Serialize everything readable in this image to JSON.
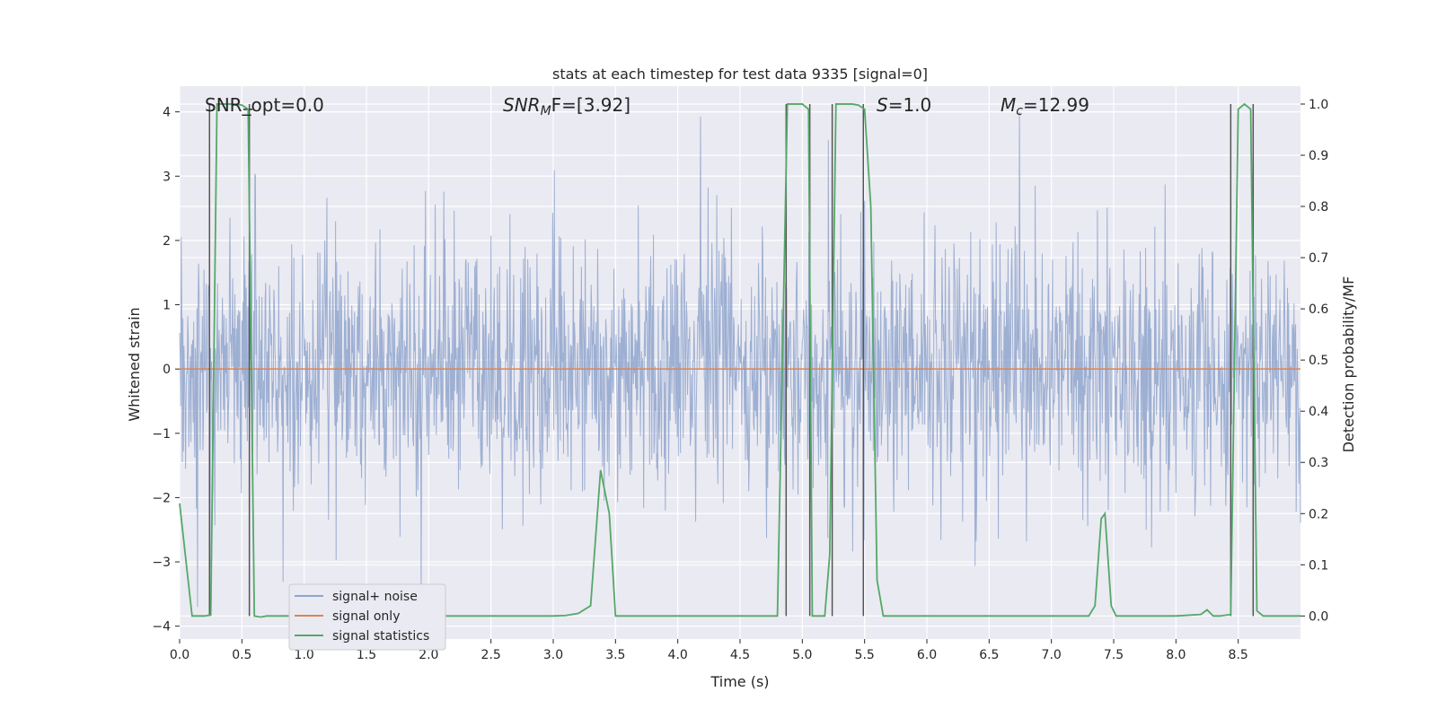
{
  "chart_data": {
    "type": "line",
    "title": "stats at each timestep for test data 9335 [signal=0]",
    "xlabel": "Time (s)",
    "ylabel_left": "Whitened strain",
    "ylabel_right": "Detection probability/MF",
    "xlim": [
      0.0,
      9.0
    ],
    "ylim_left": [
      -4.2,
      4.4
    ],
    "ylim_right": [
      -0.045,
      1.035
    ],
    "x_ticks": [
      0.0,
      0.5,
      1.0,
      1.5,
      2.0,
      2.5,
      3.0,
      3.5,
      4.0,
      4.5,
      5.0,
      5.5,
      6.0,
      6.5,
      7.0,
      7.5,
      8.0,
      8.5
    ],
    "x_tick_labels": [
      "0.0",
      "0.5",
      "1.0",
      "1.5",
      "2.0",
      "2.5",
      "3.0",
      "3.5",
      "4.0",
      "4.5",
      "5.0",
      "5.5",
      "6.0",
      "6.5",
      "7.0",
      "7.5",
      "8.0",
      "8.5"
    ],
    "y_left_ticks": [
      4,
      3,
      2,
      1,
      0,
      -1,
      -2,
      -3,
      -4
    ],
    "y_left_tick_labels": [
      "4",
      "3",
      "2",
      "1",
      "0",
      "−1",
      "−2",
      "−3",
      "−4"
    ],
    "y_right_ticks": [
      1.0,
      0.9,
      0.8,
      0.7,
      0.6,
      0.5,
      0.4,
      0.3,
      0.2,
      0.1,
      0.0
    ],
    "y_right_tick_labels": [
      "1.0",
      "0.9",
      "0.8",
      "0.7",
      "0.6",
      "0.5",
      "0.4",
      "0.3",
      "0.2",
      "0.1",
      "0.0"
    ],
    "annotations": {
      "snr_opt": "SNR_opt=0.0",
      "snr_mf_base": "SNR",
      "snr_mf_sub": "M",
      "snr_mf_rest": "F=[3.92]",
      "s_label": "S",
      "s_rest": "=1.0",
      "mc_base": "M",
      "mc_sub": "c",
      "mc_rest": "=12.99"
    },
    "series": [
      {
        "name": "signal+ noise",
        "color": "#8fa4cc",
        "description_values": "whitened noise, approx Gaussian, samples between -3.7 and 4.0",
        "sample_rate_hz": 230,
        "seed": 9335,
        "sigma": 1.0
      },
      {
        "name": "signal only",
        "color": "#dd8452",
        "x": [
          0.0,
          9.0
        ],
        "y": [
          0.0,
          0.0
        ]
      },
      {
        "name": "signal statistics",
        "color": "#55a868",
        "axis": "right",
        "x": [
          0.0,
          0.05,
          0.1,
          0.15,
          0.2,
          0.25,
          0.3,
          0.35,
          0.4,
          0.45,
          0.5,
          0.55,
          0.6,
          0.65,
          0.7,
          0.75,
          0.8,
          1.0,
          1.5,
          2.0,
          2.5,
          3.0,
          3.1,
          3.2,
          3.3,
          3.38,
          3.45,
          3.5,
          3.55,
          4.0,
          4.5,
          4.8,
          4.88,
          4.95,
          5.0,
          5.05,
          5.08,
          5.12,
          5.18,
          5.22,
          5.27,
          5.32,
          5.4,
          5.45,
          5.5,
          5.55,
          5.6,
          5.65,
          5.7,
          6.0,
          6.5,
          7.0,
          7.3,
          7.35,
          7.4,
          7.43,
          7.48,
          7.52,
          7.6,
          8.0,
          8.2,
          8.25,
          8.3,
          8.35,
          8.44,
          8.5,
          8.55,
          8.6,
          8.65,
          8.7,
          8.8,
          9.0
        ],
        "y": [
          0.22,
          0.11,
          0.0,
          0.0,
          0.0,
          0.002,
          1.0,
          1.0,
          1.0,
          1.0,
          0.998,
          0.99,
          0.0,
          -0.002,
          0.0,
          0.0,
          0.0,
          0.0,
          0.0,
          0.0,
          0.0,
          0.0,
          0.001,
          0.005,
          0.02,
          0.285,
          0.2,
          0.0,
          0.0,
          0.0,
          0.0,
          0.0,
          1.0,
          1.0,
          1.0,
          0.99,
          0.0,
          0.0,
          0.0,
          0.12,
          1.0,
          1.0,
          1.0,
          0.998,
          0.99,
          0.8,
          0.07,
          0.0,
          0.0,
          0.0,
          0.0,
          0.0,
          0.0,
          0.02,
          0.19,
          0.2,
          0.02,
          0.0,
          0.0,
          0.0,
          0.003,
          0.012,
          0.0,
          0.0,
          0.003,
          0.99,
          1.0,
          0.99,
          0.01,
          0.0,
          0.0,
          0.0
        ]
      }
    ],
    "vertical_lines": [
      0.24,
      0.56,
      4.87,
      5.06,
      5.24,
      5.49,
      8.44,
      8.62
    ],
    "hline_marker": {
      "x": 0.54,
      "y": 0.995
    },
    "legend": {
      "position": "lower-left",
      "entries": [
        "signal+ noise",
        "signal only",
        "signal statistics"
      ]
    },
    "grid": true,
    "colors": {
      "panel": "#eaeaf2",
      "grid": "#ffffff",
      "vline": "#555555"
    }
  }
}
